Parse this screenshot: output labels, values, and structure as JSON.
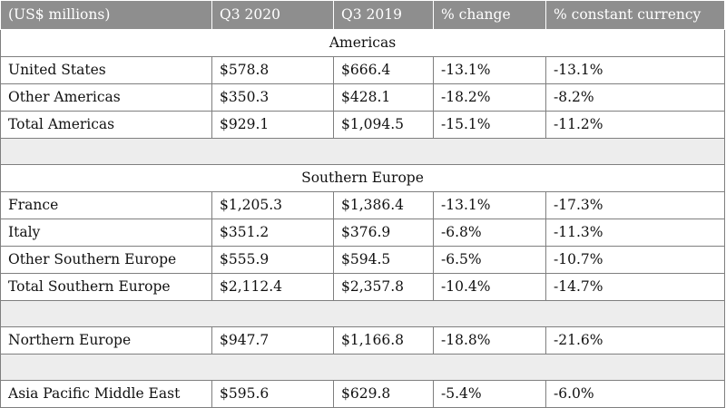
{
  "header": {
    "label": "(US$ millions)",
    "q3_2020": "Q3 2020",
    "q3_2019": "Q3 2019",
    "pct_change": "% change",
    "pct_constant": "% constant currency"
  },
  "americas": {
    "title": "Americas",
    "rows": [
      {
        "name": "United States",
        "q3_2020": "$578.8",
        "q3_2019": "$666.4",
        "change": "-13.1%",
        "constant": "-13.1%"
      },
      {
        "name": "Other Americas",
        "q3_2020": "$350.3",
        "q3_2019": "$428.1",
        "change": "-18.2%",
        "constant": "-8.2%"
      },
      {
        "name": "Total Americas",
        "q3_2020": "$929.1",
        "q3_2019": "$1,094.5",
        "change": "-15.1%",
        "constant": "-11.2%"
      }
    ]
  },
  "southern_europe": {
    "title": "Southern Europe",
    "rows": [
      {
        "name": "France",
        "q3_2020": "$1,205.3",
        "q3_2019": "$1,386.4",
        "change": "-13.1%",
        "constant": "-17.3%"
      },
      {
        "name": "Italy",
        "q3_2020": "$351.2",
        "q3_2019": "$376.9",
        "change": "-6.8%",
        "constant": "-11.3%"
      },
      {
        "name": "Other Southern Europe",
        "q3_2020": "$555.9",
        "q3_2019": "$594.5",
        "change": "-6.5%",
        "constant": "-10.7%"
      },
      {
        "name": "Total Southern Europe",
        "q3_2020": "$2,112.4",
        "q3_2019": "$2,357.8",
        "change": "-10.4%",
        "constant": "-14.7%"
      }
    ]
  },
  "northern_europe": {
    "name": "Northern Europe",
    "q3_2020": "$947.7",
    "q3_2019": "$1,166.8",
    "change": "-18.8%",
    "constant": "-21.6%"
  },
  "apme": {
    "name": "Asia Pacific Middle East",
    "q3_2020": "$595.6",
    "q3_2019": "$629.8",
    "change": "-5.4%",
    "constant": "-6.0%"
  }
}
